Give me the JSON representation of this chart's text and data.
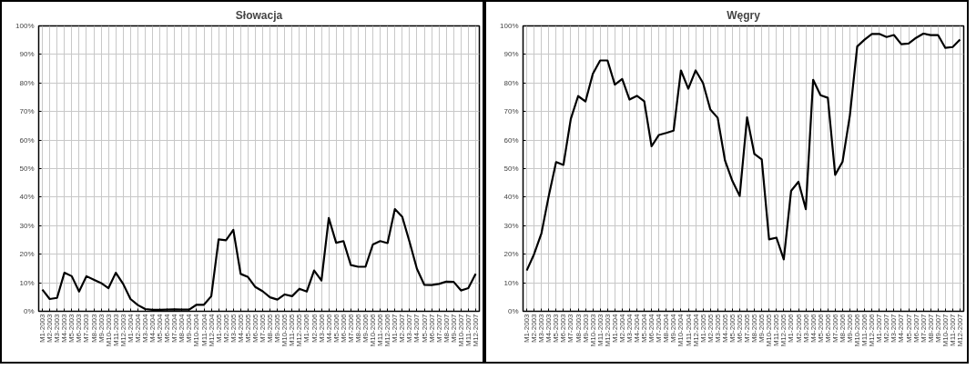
{
  "chart_data": [
    {
      "type": "line",
      "title": "Słowacja",
      "categories": [
        "M1-2003",
        "M2-2003",
        "M3-2003",
        "M4-2003",
        "M5-2003",
        "M6-2003",
        "M7-2003",
        "M8-2003",
        "M9-2003",
        "M10-2003",
        "M11-2003",
        "M12-2003",
        "M1-2004",
        "M2-2004",
        "M3-2004",
        "M4-2004",
        "M5-2004",
        "M6-2004",
        "M7-2004",
        "M8-2004",
        "M9-2004",
        "M10-2004",
        "M11-2004",
        "M12-2004",
        "M1-2005",
        "M2-2005",
        "M3-2005",
        "M4-2005",
        "M5-2005",
        "M6-2005",
        "M7-2005",
        "M8-2005",
        "M9-2005",
        "M10-2005",
        "M11-2005",
        "M12-2005",
        "M1-2006",
        "M2-2006",
        "M3-2006",
        "M4-2006",
        "M5-2006",
        "M6-2006",
        "M7-2006",
        "M8-2006",
        "M9-2006",
        "M10-2006",
        "M11-2006",
        "M12-2006",
        "M1-2007",
        "M2-2007",
        "M3-2007",
        "M4-2007",
        "M5-2007",
        "M6-2007",
        "M7-2007",
        "M8-2007",
        "M9-2007",
        "M10-2007",
        "M11-2007",
        "M12-2007"
      ],
      "series": [
        {
          "color": "#000000",
          "values": [
            7.6,
            4.3,
            4.7,
            13.5,
            12.3,
            6.9,
            12.3,
            11.1,
            9.9,
            8.1,
            13.5,
            9.6,
            4.3,
            2.2,
            0.8,
            0.5,
            0.5,
            0.6,
            0.7,
            0.6,
            0.6,
            2.3,
            2.3,
            5.3,
            25.2,
            24.9,
            28.5,
            13.1,
            12,
            8.5,
            7,
            4.9,
            4.1,
            5.9,
            5.3,
            7.9,
            6.9,
            14.3,
            10.8,
            32.7,
            24,
            24.6,
            16.2,
            15.6,
            15.6,
            23.4,
            24.6,
            23.9,
            35.8,
            33.1,
            24.3,
            14.9,
            9.3,
            9.2,
            9.6,
            10.4,
            10.3,
            7.3,
            8.1,
            13.1
          ]
        }
      ],
      "ylim": [
        0,
        100
      ],
      "yticks": [
        {
          "value": 0,
          "label": "0%"
        },
        {
          "value": 10,
          "label": "10%"
        },
        {
          "value": 20,
          "label": "20%"
        },
        {
          "value": 30,
          "label": "30%"
        },
        {
          "value": 40,
          "label": "40%"
        },
        {
          "value": 50,
          "label": "50%"
        },
        {
          "value": 60,
          "label": "60%"
        },
        {
          "value": 70,
          "label": "70%"
        },
        {
          "value": 80,
          "label": "80%"
        },
        {
          "value": 90,
          "label": "90%"
        },
        {
          "value": 100,
          "label": "100%"
        }
      ],
      "grid": true,
      "marker": "none",
      "line_style": "solid"
    },
    {
      "type": "line",
      "title": "Węgry",
      "categories": [
        "M1-2003",
        "M2-2003",
        "M3-2003",
        "M4-2003",
        "M5-2003",
        "M6-2003",
        "M7-2003",
        "M8-2003",
        "M9-2003",
        "M10-2003",
        "M11-2003",
        "M12-2003",
        "M1-2004",
        "M2-2004",
        "M3-2004",
        "M4-2004",
        "M5-2004",
        "M6-2004",
        "M7-2004",
        "M8-2004",
        "M9-2004",
        "M10-2004",
        "M11-2004",
        "M12-2004",
        "M1-2005",
        "M2-2005",
        "M3-2005",
        "M4-2005",
        "M5-2005",
        "M6-2005",
        "M7-2005",
        "M8-2005",
        "M9-2005",
        "M10-2005",
        "M11-2005",
        "M12-2005",
        "M1-2006",
        "M2-2006",
        "M3-2006",
        "M4-2006",
        "M5-2006",
        "M6-2006",
        "M7-2006",
        "M8-2006",
        "M9-2006",
        "M10-2006",
        "M11-2006",
        "M12-2006",
        "M1-2007",
        "M2-2007",
        "M3-2007",
        "M4-2007",
        "M5-2007",
        "M6-2007",
        "M7-2007",
        "M8-2007",
        "M9-2007",
        "M10-2007",
        "M11-2007",
        "M12-2007"
      ],
      "series": [
        {
          "color": "#000000",
          "values": [
            14.3,
            20,
            27.3,
            40.4,
            52.3,
            51.3,
            67.4,
            75.4,
            73.5,
            83.2,
            87.9,
            87.9,
            79.4,
            81.4,
            74.2,
            75.5,
            73.6,
            57.8,
            61.8,
            62.5,
            63.3,
            84.4,
            78,
            84.4,
            80,
            70.7,
            67.8,
            52.8,
            45.7,
            40.4,
            68,
            55.1,
            53.2,
            25.2,
            25.8,
            18.2,
            42.2,
            45.4,
            35.8,
            81.1,
            75.7,
            74.8,
            47.8,
            52.4,
            68.6,
            92.8,
            95.2,
            97.2,
            97.2,
            96.1,
            96.8,
            93.6,
            93.8,
            95.8,
            97.3,
            96.8,
            96.8,
            92.3,
            92.6,
            95.2
          ]
        }
      ],
      "ylim": [
        0,
        100
      ],
      "yticks": [
        {
          "value": 0,
          "label": "0%"
        },
        {
          "value": 10,
          "label": "10%"
        },
        {
          "value": 20,
          "label": "20%"
        },
        {
          "value": 30,
          "label": "30%"
        },
        {
          "value": 40,
          "label": "40%"
        },
        {
          "value": 50,
          "label": "50%"
        },
        {
          "value": 60,
          "label": "60%"
        },
        {
          "value": 70,
          "label": "70%"
        },
        {
          "value": 80,
          "label": "80%"
        },
        {
          "value": 90,
          "label": "90%"
        },
        {
          "value": 100,
          "label": "100%"
        }
      ],
      "grid": true,
      "marker": "none",
      "line_style": "solid"
    }
  ]
}
